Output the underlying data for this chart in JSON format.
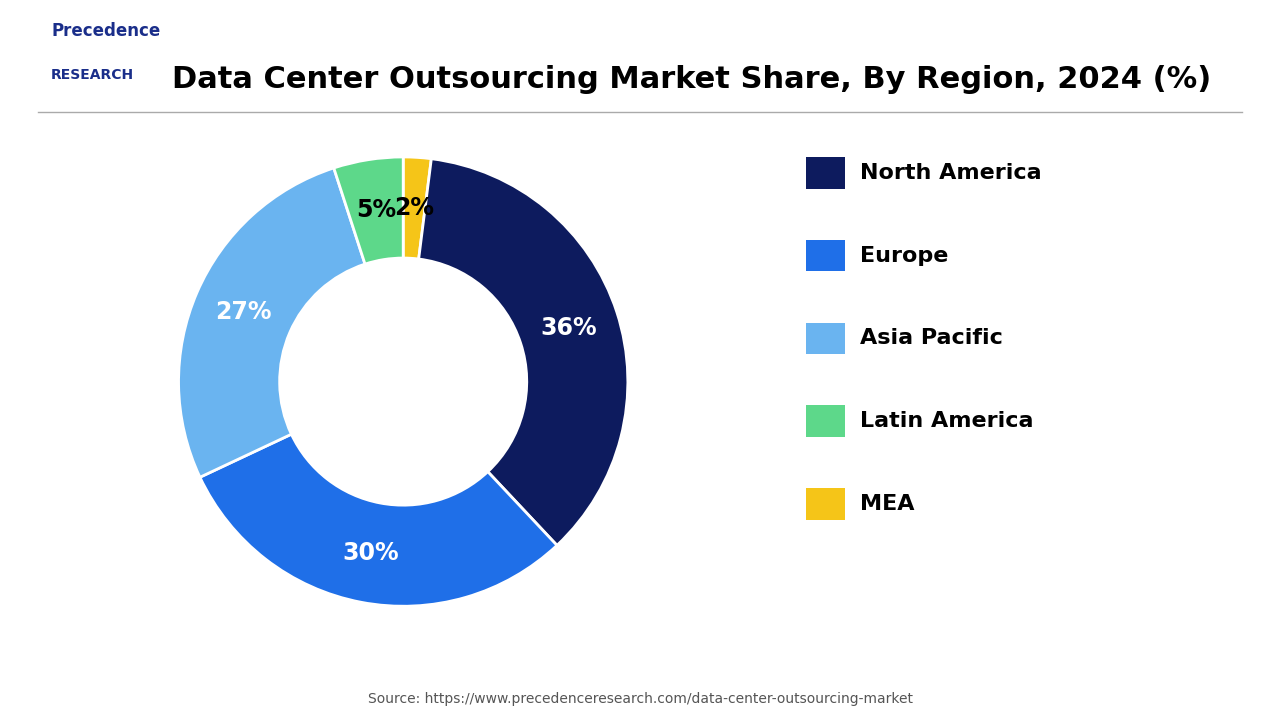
{
  "title": "Data Center Outsourcing Market Share, By Region, 2024 (%)",
  "segments": [
    "North America",
    "Europe",
    "Asia Pacific",
    "Latin America",
    "MEA"
  ],
  "values": [
    36,
    30,
    27,
    5,
    2
  ],
  "colors": [
    "#0d1b5e",
    "#1f6fe8",
    "#6ab4f0",
    "#5dd88a",
    "#f5c518"
  ],
  "label_colors": [
    "white",
    "white",
    "white",
    "black",
    "black"
  ],
  "source": "Source: https://www.precedenceresearch.com/data-center-outsourcing-market",
  "background_color": "#ffffff",
  "title_fontsize": 22,
  "legend_fontsize": 16,
  "label_fontsize": 17,
  "donut_width": 0.45,
  "plot_values_ordered": [
    2,
    36,
    30,
    27,
    5
  ],
  "plot_pcts": [
    "2%",
    "36%",
    "30%",
    "27%",
    "5%"
  ],
  "plot_colors_ordered": [
    "#f5c518",
    "#0d1b5e",
    "#1f6fe8",
    "#6ab4f0",
    "#5dd88a"
  ],
  "plot_label_colors_ordered": [
    "black",
    "white",
    "white",
    "white",
    "black"
  ]
}
